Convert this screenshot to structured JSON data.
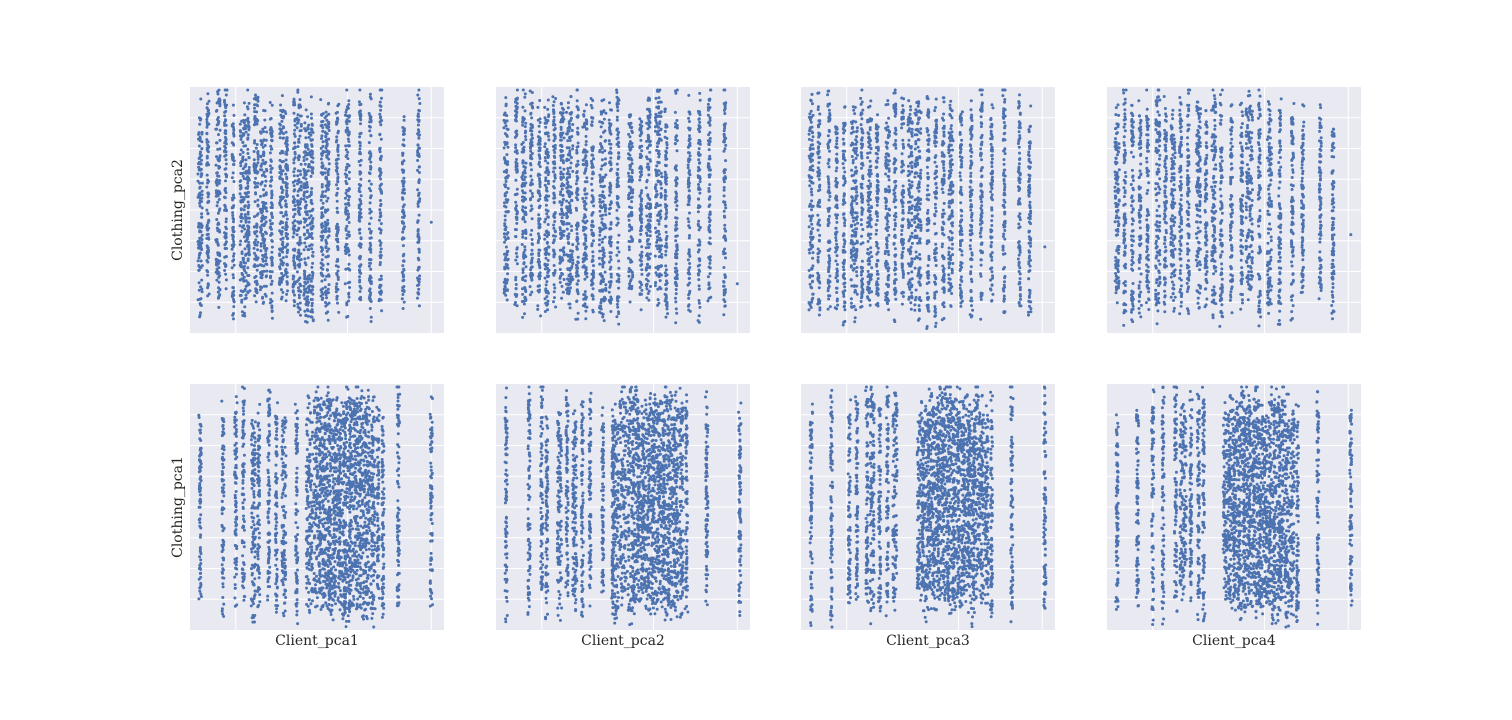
{
  "chart_data": {
    "type": "scatter",
    "layout": "pairplot grid, 2 rows x 4 columns",
    "style": {
      "panel_bg": "#e9e9f1",
      "grid": true,
      "grid_color": "#ffffff",
      "point_color": "#4c72b0",
      "tick_labels_visible": false
    },
    "x_vars": [
      "Client_pca1",
      "Client_pca2",
      "Client_pca3",
      "Client_pca4"
    ],
    "y_vars": [
      "Clothing_pca2",
      "Clothing_pca1"
    ],
    "panels": [
      {
        "row": 0,
        "col": 0,
        "xvar": "Client_pca1",
        "yvar": "Clothing_pca2",
        "x_stripes": [
          0.04,
          0.07,
          0.11,
          0.14,
          0.17,
          0.21,
          0.23,
          0.26,
          0.29,
          0.32,
          0.36,
          0.38,
          0.41,
          0.43,
          0.46,
          0.48,
          0.52,
          0.54,
          0.58,
          0.62,
          0.67,
          0.71,
          0.75,
          0.84,
          0.9
        ],
        "stripe_weight": [
          2,
          1,
          2,
          1,
          1,
          3,
          1,
          2,
          3,
          1,
          2,
          1,
          1,
          2,
          3,
          1,
          1,
          2,
          1,
          2,
          1,
          1,
          1,
          1,
          1
        ],
        "outliers": [
          [
            0.95,
            0.45
          ]
        ],
        "y_range": [
          0.08,
          0.96
        ]
      },
      {
        "row": 0,
        "col": 1,
        "xvar": "Client_pca2",
        "yvar": "Clothing_pca2",
        "x_stripes": [
          0.04,
          0.08,
          0.11,
          0.14,
          0.17,
          0.2,
          0.23,
          0.26,
          0.29,
          0.32,
          0.35,
          0.38,
          0.42,
          0.45,
          0.48,
          0.53,
          0.57,
          0.6,
          0.64,
          0.67,
          0.71,
          0.76,
          0.8,
          0.84,
          0.9
        ],
        "stripe_weight": [
          2,
          1,
          2,
          1,
          1,
          2,
          1,
          2,
          3,
          1,
          2,
          1,
          3,
          1,
          1,
          2,
          1,
          2,
          3,
          1,
          1,
          1,
          1,
          1,
          1
        ],
        "outliers": [
          [
            0.95,
            0.2
          ]
        ],
        "y_range": [
          0.08,
          0.96
        ]
      },
      {
        "row": 0,
        "col": 2,
        "xvar": "Client_pca3",
        "yvar": "Clothing_pca2",
        "x_stripes": [
          0.04,
          0.07,
          0.11,
          0.14,
          0.17,
          0.21,
          0.24,
          0.27,
          0.3,
          0.34,
          0.37,
          0.4,
          0.43,
          0.46,
          0.5,
          0.53,
          0.56,
          0.59,
          0.63,
          0.67,
          0.71,
          0.75,
          0.8,
          0.86,
          0.9
        ],
        "stripe_weight": [
          2,
          1,
          1,
          1,
          1,
          3,
          1,
          2,
          1,
          2,
          1,
          1,
          2,
          3,
          1,
          1,
          1,
          2,
          1,
          1,
          1,
          1,
          1,
          1,
          1
        ],
        "outliers": [
          [
            0.96,
            0.35
          ]
        ],
        "y_range": [
          0.06,
          0.96
        ]
      },
      {
        "row": 0,
        "col": 3,
        "xvar": "Client_pca4",
        "yvar": "Clothing_pca2",
        "x_stripes": [
          0.04,
          0.07,
          0.1,
          0.13,
          0.16,
          0.2,
          0.23,
          0.26,
          0.29,
          0.32,
          0.36,
          0.39,
          0.42,
          0.45,
          0.49,
          0.53,
          0.56,
          0.6,
          0.64,
          0.68,
          0.73,
          0.77,
          0.84,
          0.89
        ],
        "stripe_weight": [
          2,
          1,
          1,
          1,
          1,
          2,
          1,
          2,
          1,
          1,
          2,
          1,
          2,
          1,
          1,
          1,
          3,
          1,
          2,
          1,
          1,
          1,
          1,
          1
        ],
        "outliers": [
          [
            0.96,
            0.4
          ]
        ],
        "y_range": [
          0.06,
          0.96
        ]
      },
      {
        "row": 1,
        "col": 0,
        "xvar": "Client_pca1",
        "yvar": "Clothing_pca1",
        "x_stripes": [
          0.04,
          0.13,
          0.18,
          0.21,
          0.25,
          0.27,
          0.31,
          0.34,
          0.37,
          0.42,
          0.47,
          0.5,
          0.52,
          0.54,
          0.56,
          0.58,
          0.6,
          0.62,
          0.64,
          0.66,
          0.68,
          0.7,
          0.72,
          0.74,
          0.76,
          0.82,
          0.95
        ],
        "stripe_weight": [
          1,
          1,
          1,
          1,
          2,
          1,
          1,
          1,
          2,
          1,
          3,
          3,
          3,
          3,
          3,
          3,
          3,
          3,
          3,
          3,
          3,
          2,
          2,
          1,
          1,
          1,
          1
        ],
        "outliers": [
          [
            0.31,
            0.44
          ],
          [
            0.82,
            0.1
          ]
        ],
        "y_range": [
          0.05,
          0.96
        ]
      },
      {
        "row": 1,
        "col": 1,
        "xvar": "Client_pca2",
        "yvar": "Clothing_pca1",
        "x_stripes": [
          0.04,
          0.13,
          0.18,
          0.2,
          0.25,
          0.28,
          0.31,
          0.34,
          0.37,
          0.42,
          0.46,
          0.47,
          0.5,
          0.53,
          0.55,
          0.57,
          0.59,
          0.61,
          0.63,
          0.65,
          0.67,
          0.69,
          0.71,
          0.73,
          0.75,
          0.83,
          0.96
        ],
        "stripe_weight": [
          1,
          1,
          1,
          1,
          2,
          1,
          2,
          1,
          1,
          1,
          1,
          3,
          3,
          3,
          3,
          3,
          3,
          3,
          3,
          3,
          3,
          3,
          2,
          2,
          1,
          1,
          1
        ],
        "outliers": [],
        "y_range": [
          0.07,
          0.96
        ]
      },
      {
        "row": 1,
        "col": 2,
        "xvar": "Client_pca3",
        "yvar": "Clothing_pca1",
        "x_stripes": [
          0.04,
          0.12,
          0.19,
          0.22,
          0.26,
          0.28,
          0.31,
          0.34,
          0.37,
          0.47,
          0.49,
          0.51,
          0.53,
          0.55,
          0.57,
          0.59,
          0.61,
          0.63,
          0.65,
          0.67,
          0.69,
          0.71,
          0.73,
          0.75,
          0.83,
          0.96
        ],
        "stripe_weight": [
          1,
          1,
          1,
          1,
          1,
          2,
          1,
          1,
          2,
          3,
          3,
          3,
          3,
          3,
          3,
          3,
          3,
          3,
          3,
          3,
          3,
          2,
          2,
          1,
          1,
          1
        ],
        "outliers": [],
        "y_range": [
          0.05,
          0.96
        ]
      },
      {
        "row": 1,
        "col": 3,
        "xvar": "Client_pca4",
        "yvar": "Clothing_pca1",
        "x_stripes": [
          0.04,
          0.12,
          0.18,
          0.22,
          0.27,
          0.3,
          0.33,
          0.36,
          0.38,
          0.47,
          0.49,
          0.51,
          0.53,
          0.55,
          0.57,
          0.59,
          0.61,
          0.63,
          0.65,
          0.67,
          0.69,
          0.71,
          0.73,
          0.75,
          0.83,
          0.96
        ],
        "stripe_weight": [
          1,
          1,
          1,
          1,
          1,
          3,
          1,
          1,
          1,
          3,
          3,
          3,
          3,
          3,
          3,
          3,
          3,
          3,
          3,
          3,
          3,
          2,
          2,
          1,
          1,
          1
        ],
        "outliers": [],
        "y_range": [
          0.05,
          0.96
        ]
      }
    ]
  }
}
